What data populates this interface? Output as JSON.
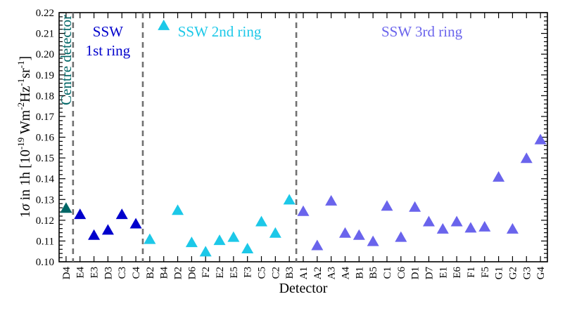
{
  "chart_data": {
    "type": "scatter",
    "xlabel": "Detector",
    "ylabel_parts": {
      "pre": "1",
      "sigma": "σ",
      "mid": " in 1h [10",
      "exp1": "-19",
      "unit1": " Wm",
      "exp2": "-2",
      "unit2": "Hz",
      "exp3": "-1",
      "unit3": "sr",
      "exp4": "-1",
      "post": "]"
    },
    "ylim": [
      0.1,
      0.22
    ],
    "yticks": [
      "0.10",
      "0.11",
      "0.12",
      "0.13",
      "0.14",
      "0.15",
      "0.16",
      "0.17",
      "0.18",
      "0.19",
      "0.20",
      "0.21",
      "0.22"
    ],
    "categories": [
      "D4",
      "E4",
      "E3",
      "D3",
      "C3",
      "C4",
      "B2",
      "B4",
      "D2",
      "D6",
      "F2",
      "E2",
      "E5",
      "F3",
      "C5",
      "C2",
      "B3",
      "A1",
      "A2",
      "A3",
      "A4",
      "B1",
      "B5",
      "C1",
      "C6",
      "D1",
      "D7",
      "E1",
      "E6",
      "F1",
      "F5",
      "G1",
      "G2",
      "G3",
      "G4"
    ],
    "series": [
      {
        "name": "Centre detector",
        "color": "#006666",
        "start": 0,
        "values": [
          0.1255
        ]
      },
      {
        "name": "SSW\n1st ring",
        "color": "#0000cc",
        "start": 1,
        "values": [
          0.1225,
          0.1125,
          0.115,
          0.1225,
          0.118
        ]
      },
      {
        "name": "SSW 2nd ring",
        "color": "#1cc8e8",
        "start": 6,
        "values": [
          0.1105,
          0.2135,
          0.1245,
          0.109,
          0.1045,
          0.11,
          0.1115,
          0.106,
          0.119,
          0.1135,
          0.1295
        ]
      },
      {
        "name": "SSW 3rd ring",
        "color": "#6a64ec",
        "start": 17,
        "values": [
          0.124,
          0.1075,
          0.129,
          0.1135,
          0.1125,
          0.1095,
          0.1265,
          0.1115,
          0.126,
          0.119,
          0.1155,
          0.119,
          0.116,
          0.1165,
          0.1405,
          0.1155,
          0.1495,
          0.1585
        ]
      }
    ],
    "dividers_after": [
      0,
      5,
      16
    ],
    "marker": "triangle",
    "grid": false
  }
}
